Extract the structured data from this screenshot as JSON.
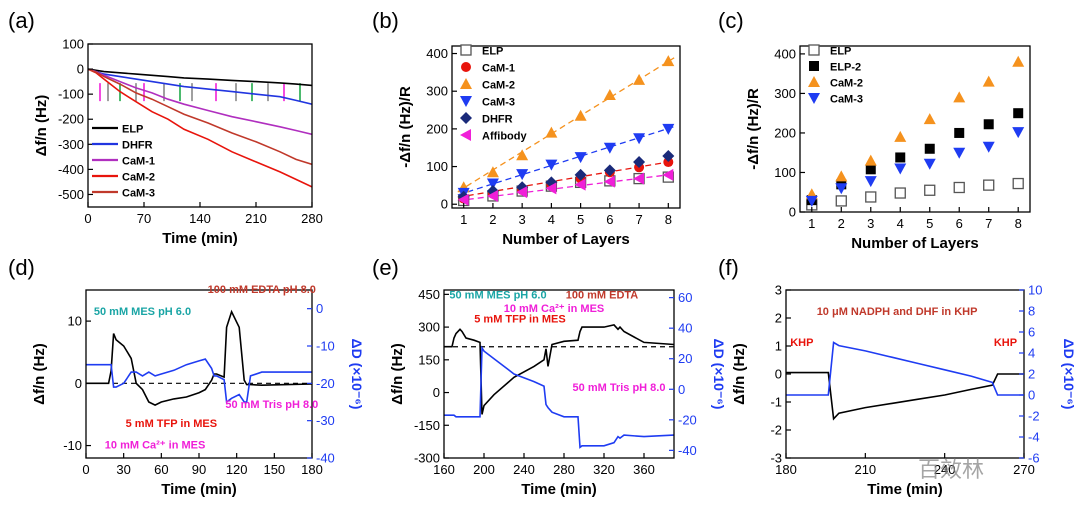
{
  "watermark": "百效林",
  "chart_data": [
    {
      "id": "a",
      "type": "line",
      "panel_label": "(a)",
      "xlabel": "Time (min)",
      "ylabel": "Δf/n (Hz)",
      "xlim": [
        0,
        280
      ],
      "ylim": [
        -550,
        100
      ],
      "xticks": [
        0,
        70,
        140,
        210,
        280
      ],
      "yticks": [
        100,
        0,
        -100,
        -200,
        -300,
        -400,
        -500
      ],
      "legend": "bottom-left",
      "series": [
        {
          "name": "ELP",
          "color": "#000000",
          "x": [
            0,
            10,
            20,
            40,
            60,
            80,
            100,
            120,
            150,
            180,
            210,
            240,
            260,
            280
          ],
          "y": [
            0,
            -5,
            -10,
            -15,
            -20,
            -25,
            -30,
            -35,
            -40,
            -45,
            -50,
            -55,
            -60,
            -65
          ]
        },
        {
          "name": "DHFR",
          "color": "#2135e0",
          "x": [
            0,
            10,
            20,
            40,
            60,
            80,
            100,
            120,
            150,
            180,
            210,
            240,
            260,
            280
          ],
          "y": [
            0,
            -10,
            -20,
            -30,
            -40,
            -50,
            -60,
            -70,
            -80,
            -90,
            -100,
            -110,
            -125,
            -140
          ]
        },
        {
          "name": "CaM-1",
          "color": "#b02fbf",
          "x": [
            0,
            10,
            20,
            40,
            60,
            80,
            100,
            120,
            150,
            180,
            210,
            240,
            260,
            280
          ],
          "y": [
            0,
            -10,
            -25,
            -50,
            -75,
            -95,
            -120,
            -140,
            -165,
            -190,
            -210,
            -230,
            -245,
            -260
          ]
        },
        {
          "name": "CaM-2",
          "color": "#e8140c",
          "x": [
            0,
            10,
            20,
            40,
            60,
            80,
            100,
            120,
            150,
            180,
            210,
            240,
            260,
            280
          ],
          "y": [
            0,
            -15,
            -40,
            -90,
            -130,
            -170,
            -200,
            -240,
            -280,
            -330,
            -370,
            -410,
            -440,
            -470
          ]
        },
        {
          "name": "CaM-3",
          "color": "#c0392b",
          "x": [
            0,
            10,
            20,
            40,
            60,
            80,
            100,
            120,
            150,
            180,
            210,
            240,
            260,
            280
          ],
          "y": [
            0,
            -12,
            -30,
            -60,
            -95,
            -120,
            -150,
            -180,
            -215,
            -255,
            -290,
            -330,
            -360,
            -380
          ]
        }
      ],
      "arrows": [
        {
          "x": 15,
          "color": "#f01fd8"
        },
        {
          "x": 25,
          "color": "#888888"
        },
        {
          "x": 40,
          "color": "#1fa84a"
        },
        {
          "x": 60,
          "color": "#888888"
        },
        {
          "x": 70,
          "color": "#f01fd8"
        },
        {
          "x": 95,
          "color": "#888888"
        },
        {
          "x": 115,
          "color": "#1fa84a"
        },
        {
          "x": 130,
          "color": "#888888"
        },
        {
          "x": 160,
          "color": "#f01fd8"
        },
        {
          "x": 185,
          "color": "#888888"
        },
        {
          "x": 205,
          "color": "#1fa84a"
        },
        {
          "x": 225,
          "color": "#888888"
        },
        {
          "x": 245,
          "color": "#f01fd8"
        },
        {
          "x": 265,
          "color": "#1fa84a"
        }
      ]
    },
    {
      "id": "b",
      "type": "scatter",
      "panel_label": "(b)",
      "xlabel": "Number of Layers",
      "ylabel": "-Δf/n (Hz)/R",
      "xlim": [
        0.6,
        8.4
      ],
      "ylim": [
        -10,
        420
      ],
      "xticks": [
        1,
        2,
        3,
        4,
        5,
        6,
        7,
        8
      ],
      "yticks": [
        0,
        100,
        200,
        300,
        400
      ],
      "legend": "top-left",
      "x": [
        1,
        2,
        3,
        4,
        5,
        6,
        7,
        8
      ],
      "series": [
        {
          "name": "ELP",
          "marker": "square-open",
          "color": "#555555",
          "values": [
            10,
            22,
            35,
            48,
            58,
            62,
            68,
            72
          ]
        },
        {
          "name": "CaM-1",
          "marker": "circle",
          "color": "#e8140c",
          "values": [
            15,
            28,
            38,
            52,
            68,
            85,
            98,
            112
          ],
          "fit": [
            8,
            13
          ]
        },
        {
          "name": "CaM-2",
          "marker": "triangle-up",
          "color": "#f5921e",
          "values": [
            45,
            85,
            130,
            190,
            235,
            290,
            330,
            380
          ],
          "fit": [
            -5,
            48
          ]
        },
        {
          "name": "CaM-3",
          "marker": "triangle-down",
          "color": "#1f3cf2",
          "values": [
            30,
            55,
            80,
            105,
            125,
            150,
            175,
            200
          ],
          "fit": [
            5,
            24.5
          ]
        },
        {
          "name": "DHFR",
          "marker": "diamond",
          "color": "#1a2a7a",
          "values": [
            20,
            35,
            45,
            58,
            78,
            90,
            112,
            128
          ]
        },
        {
          "name": "Affibody",
          "marker": "triangle-left",
          "color": "#f01fd8",
          "values": [
            12,
            22,
            32,
            42,
            52,
            60,
            68,
            78
          ],
          "fit": [
            2,
            9.5
          ]
        }
      ]
    },
    {
      "id": "c",
      "type": "scatter",
      "panel_label": "(c)",
      "xlabel": "Number of Layers",
      "ylabel": "-Δf/n (Hz)/R",
      "xlim": [
        0.6,
        8.4
      ],
      "ylim": [
        0,
        420
      ],
      "xticks": [
        1,
        2,
        3,
        4,
        5,
        6,
        7,
        8
      ],
      "yticks": [
        0,
        100,
        200,
        300,
        400
      ],
      "legend": "top-left",
      "x": [
        1,
        2,
        3,
        4,
        5,
        6,
        7,
        8
      ],
      "series": [
        {
          "name": "ELP",
          "marker": "square-open",
          "color": "#555555",
          "values": [
            18,
            28,
            38,
            48,
            55,
            62,
            68,
            72
          ]
        },
        {
          "name": "ELP-2",
          "marker": "square",
          "color": "#000000",
          "values": [
            30,
            70,
            108,
            138,
            160,
            200,
            222,
            250
          ]
        },
        {
          "name": "CaM-2",
          "marker": "triangle-up",
          "color": "#f5921e",
          "values": [
            45,
            90,
            130,
            190,
            235,
            290,
            330,
            380
          ]
        },
        {
          "name": "CaM-3",
          "marker": "triangle-down",
          "color": "#1f3cf2",
          "values": [
            28,
            60,
            78,
            110,
            122,
            150,
            165,
            202
          ]
        }
      ]
    },
    {
      "id": "d",
      "type": "line",
      "panel_label": "(d)",
      "xlabel": "Time (min)",
      "ylabel": "Δf/n (Hz)",
      "ylabel_right": "ΔD (×10⁻⁶)",
      "xlim": [
        0,
        180
      ],
      "ylim": [
        -12,
        15
      ],
      "ylim_right": [
        -40,
        5
      ],
      "xticks": [
        0,
        30,
        60,
        90,
        120,
        150,
        180
      ],
      "yticks": [
        10,
        0,
        -10
      ],
      "yticks_right": [
        0,
        -10,
        -20,
        -30,
        -40
      ],
      "series": [
        {
          "name": "Δf",
          "color": "#000000",
          "axis": "left",
          "x": [
            0,
            18,
            20,
            22,
            24,
            30,
            36,
            40,
            45,
            50,
            55,
            60,
            70,
            80,
            90,
            95,
            100,
            102,
            104,
            110,
            112,
            116,
            122,
            126,
            128,
            131,
            140,
            160,
            180
          ],
          "y": [
            0,
            0,
            2,
            8,
            7,
            6,
            4,
            0,
            -1,
            -3,
            -3.5,
            -3,
            -2.5,
            -2.2,
            -1.5,
            -1,
            0.5,
            1.5,
            1.5,
            1,
            9,
            11.5,
            9,
            0.5,
            -0.2,
            -0.2,
            -0.3,
            -0.2,
            -0.1
          ]
        },
        {
          "name": "ΔD",
          "color": "#1f3cf2",
          "axis": "right",
          "x": [
            0,
            18,
            20,
            22,
            24,
            30,
            36,
            40,
            45,
            50,
            55,
            60,
            70,
            80,
            90,
            95,
            100,
            102,
            104,
            110,
            112,
            116,
            122,
            126,
            128,
            131,
            140,
            160,
            180
          ],
          "y": [
            -15,
            -15,
            -15,
            -21,
            -21,
            -20,
            -17,
            -17,
            -18,
            -17,
            -18,
            -17.5,
            -16.5,
            -15,
            -14,
            -13.5,
            -16,
            -18,
            -18,
            -19,
            -25,
            -24,
            -23,
            -25,
            -25,
            -18,
            -17,
            -17,
            -17
          ]
        }
      ],
      "baseline": 0,
      "annotations": [
        {
          "text": "50 mM MES pH 6.0",
          "color": "#1aa5a5",
          "x": 45,
          "y": 11
        },
        {
          "text": "100 mM EDTA pH 8.0",
          "color": "#c0392b",
          "x": 140,
          "y": 14.5
        },
        {
          "text": "5 mM TFP in MES",
          "color": "#e8140c",
          "x": 68,
          "y": -7
        },
        {
          "text": "50 mM Tris pH 8.0",
          "color": "#f01fd8",
          "x": 148,
          "y": -4
        },
        {
          "text": "10 mM Ca²⁺ in MES",
          "color": "#f01fd8",
          "x": 55,
          "y": -10.5
        }
      ]
    },
    {
      "id": "e",
      "type": "line",
      "panel_label": "(e)",
      "xlabel": "Time (min)",
      "ylabel": "Δf/n (Hz)",
      "ylabel_right": "ΔD (×10⁻⁶)",
      "xlim": [
        160,
        390
      ],
      "ylim": [
        -300,
        470
      ],
      "ylim_right": [
        -45,
        65
      ],
      "xticks": [
        160,
        200,
        240,
        280,
        320,
        360
      ],
      "yticks": [
        450,
        300,
        150,
        0,
        -150,
        -300
      ],
      "yticks_right": [
        60,
        40,
        20,
        0,
        -20,
        -40
      ],
      "series": [
        {
          "name": "Δf",
          "color": "#000000",
          "axis": "left",
          "x": [
            160,
            168,
            170,
            172,
            176,
            178,
            182,
            190,
            196,
            198,
            200,
            210,
            230,
            250,
            260,
            262,
            264,
            268,
            280,
            294,
            296,
            298,
            320,
            330,
            334,
            336,
            340,
            360,
            390
          ],
          "y": [
            210,
            210,
            250,
            270,
            290,
            280,
            250,
            240,
            230,
            -100,
            -60,
            -10,
            70,
            120,
            150,
            200,
            120,
            220,
            235,
            240,
            280,
            300,
            300,
            310,
            290,
            300,
            280,
            230,
            220
          ]
        },
        {
          "name": "ΔD",
          "color": "#1f3cf2",
          "axis": "right",
          "x": [
            160,
            168,
            170,
            172,
            176,
            178,
            182,
            190,
            196,
            198,
            200,
            210,
            230,
            250,
            260,
            262,
            264,
            268,
            280,
            294,
            296,
            298,
            320,
            330,
            334,
            336,
            340,
            360,
            390
          ],
          "y": [
            -17,
            -17,
            -17,
            -18,
            -18,
            -18,
            -18,
            -18,
            -18,
            27,
            25,
            20,
            10,
            5,
            2,
            -10,
            -12,
            -15,
            -18,
            -18,
            -38,
            -37,
            -37,
            -35,
            -31,
            -32,
            -30,
            -31,
            -30
          ]
        }
      ],
      "baseline": 210,
      "annotations": [
        {
          "text": "50 mM MES pH 6.0",
          "color": "#1aa5a5",
          "x": 214,
          "y": 430
        },
        {
          "text": "100 mM EDTA",
          "color": "#c0392b",
          "x": 318,
          "y": 430
        },
        {
          "text": "10 mM Ca²⁺ in MES",
          "color": "#f01fd8",
          "x": 270,
          "y": 370
        },
        {
          "text": "5 mM TFP in MES",
          "color": "#e8140c",
          "x": 236,
          "y": 320
        },
        {
          "text": "50 mM Tris pH 8.0",
          "color": "#f01fd8",
          "x": 335,
          "y": 8
        }
      ]
    },
    {
      "id": "f",
      "type": "line",
      "panel_label": "(f)",
      "xlabel": "Time (min)",
      "ylabel": "Δf/n (Hz)",
      "ylabel_right": "ΔD (×10⁻⁶)",
      "xlim": [
        180,
        270
      ],
      "ylim": [
        -3,
        3
      ],
      "ylim_right": [
        -6,
        10
      ],
      "xticks": [
        180,
        210,
        240,
        270
      ],
      "yticks": [
        3,
        2,
        1,
        0,
        -1,
        -2,
        -3
      ],
      "yticks_right": [
        10,
        8,
        6,
        4,
        2,
        0,
        -2,
        -4,
        -6
      ],
      "series": [
        {
          "name": "Δf",
          "color": "#000000",
          "axis": "left",
          "x": [
            180,
            190,
            196,
            198,
            200,
            210,
            220,
            230,
            240,
            250,
            258,
            260,
            270
          ],
          "y": [
            0.05,
            0.05,
            0.05,
            -1.6,
            -1.4,
            -1.2,
            -1.05,
            -0.9,
            -0.75,
            -0.55,
            -0.4,
            0,
            0
          ]
        },
        {
          "name": "ΔD",
          "color": "#1f3cf2",
          "axis": "right",
          "x": [
            180,
            190,
            196,
            198,
            200,
            210,
            220,
            230,
            240,
            250,
            258,
            260,
            270
          ],
          "y": [
            0,
            0,
            0,
            5,
            4.7,
            4.2,
            3.6,
            3,
            2.4,
            1.8,
            1.2,
            0,
            0
          ]
        }
      ],
      "annotations": [
        {
          "text": "10 μM NADPH and DHF in KHP",
          "color": "#c0392b",
          "x": 222,
          "y": 2.1
        },
        {
          "text": "KHP",
          "color": "#e8140c",
          "x": 186,
          "y": 1.0
        },
        {
          "text": "KHP",
          "color": "#e8140c",
          "x": 263,
          "y": 1.0
        }
      ]
    }
  ]
}
